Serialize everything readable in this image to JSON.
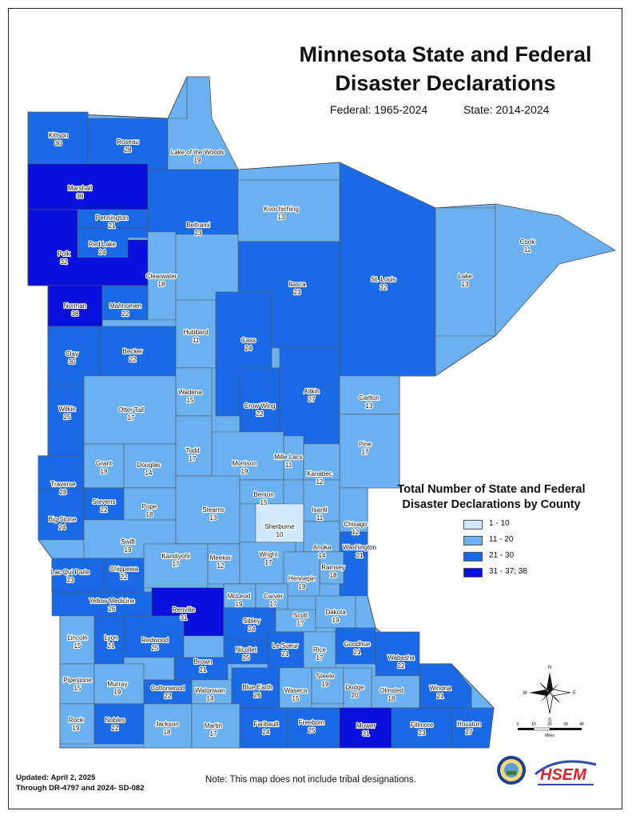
{
  "title_line1": "Minnesota State and Federal",
  "title_line2": "Disaster Declarations",
  "federal_label": "Federal:  1965-2024",
  "state_label": "State:  2014-2024",
  "legend": {
    "title_line1": "Total Number of State and Federal",
    "title_line2": "Disaster Declarations by County",
    "items": [
      {
        "label": "1 - 10",
        "color": "#d1e9fa"
      },
      {
        "label": "11 - 20",
        "color": "#6bb0ef"
      },
      {
        "label": "21 - 30",
        "color": "#1a6ae6"
      },
      {
        "label": "31 - 37; 38",
        "color": "#0a10dc"
      }
    ]
  },
  "counties": [
    {
      "name": "Kittson",
      "value": "30"
    },
    {
      "name": "Roseau",
      "value": "28"
    },
    {
      "name": "Lake of the Woods",
      "value": "19"
    },
    {
      "name": "Marshall",
      "value": "36"
    },
    {
      "name": "Pennington",
      "value": "21"
    },
    {
      "name": "Red Lake",
      "value": "24"
    },
    {
      "name": "Polk",
      "value": "32"
    },
    {
      "name": "Beltrami",
      "value": "23"
    },
    {
      "name": "Koochiching",
      "value": "13"
    },
    {
      "name": "Clearwater",
      "value": "18"
    },
    {
      "name": "Itasca",
      "value": "23"
    },
    {
      "name": "St. Louis",
      "value": "22"
    },
    {
      "name": "Lake",
      "value": "13"
    },
    {
      "name": "Cook",
      "value": "11"
    },
    {
      "name": "Norman",
      "value": "38"
    },
    {
      "name": "Mahnomen",
      "value": "22"
    },
    {
      "name": "Hubbard",
      "value": "11"
    },
    {
      "name": "Cass",
      "value": "24"
    },
    {
      "name": "Clay",
      "value": "30"
    },
    {
      "name": "Becker",
      "value": "22"
    },
    {
      "name": "Wadena",
      "value": "15"
    },
    {
      "name": "Crow Wing",
      "value": "22"
    },
    {
      "name": "Aitkin",
      "value": "27"
    },
    {
      "name": "Carlton",
      "value": "13"
    },
    {
      "name": "Wilkin",
      "value": "25"
    },
    {
      "name": "Otter Tail",
      "value": "17"
    },
    {
      "name": "Todd",
      "value": "17"
    },
    {
      "name": "Pine",
      "value": "17"
    },
    {
      "name": "Grant",
      "value": "19"
    },
    {
      "name": "Douglas",
      "value": "14"
    },
    {
      "name": "Morrison",
      "value": "19"
    },
    {
      "name": "Mille Lacs",
      "value": "11"
    },
    {
      "name": "Kanabec",
      "value": "12"
    },
    {
      "name": "Traverse",
      "value": "28"
    },
    {
      "name": "Stevens",
      "value": "22"
    },
    {
      "name": "Pope",
      "value": "18"
    },
    {
      "name": "Benton",
      "value": "15"
    },
    {
      "name": "Isanti",
      "value": "11"
    },
    {
      "name": "Stearns",
      "value": "13"
    },
    {
      "name": "Big Stone",
      "value": "24"
    },
    {
      "name": "Sherburne",
      "value": "10"
    },
    {
      "name": "Chisago",
      "value": "12"
    },
    {
      "name": "Swift",
      "value": "19"
    },
    {
      "name": "Anoka",
      "value": "14"
    },
    {
      "name": "Washington",
      "value": "21"
    },
    {
      "name": "Kandiyohi",
      "value": "17"
    },
    {
      "name": "Meeker",
      "value": "12"
    },
    {
      "name": "Wright",
      "value": "17"
    },
    {
      "name": "Ramsey",
      "value": "18"
    },
    {
      "name": "Lac Qui Parle",
      "value": "23"
    },
    {
      "name": "Chippewa",
      "value": "22"
    },
    {
      "name": "Hennepin",
      "value": "19"
    },
    {
      "name": "McLeod",
      "value": "19"
    },
    {
      "name": "Carver",
      "value": "17"
    },
    {
      "name": "Yellow Medicine",
      "value": "26"
    },
    {
      "name": "Renville",
      "value": "31"
    },
    {
      "name": "Sibley",
      "value": "24"
    },
    {
      "name": "Scott",
      "value": "17"
    },
    {
      "name": "Dakota",
      "value": "19"
    },
    {
      "name": "Lincoln",
      "value": "15"
    },
    {
      "name": "Lyon",
      "value": "21"
    },
    {
      "name": "Redwood",
      "value": "25"
    },
    {
      "name": "Nicollet",
      "value": "25"
    },
    {
      "name": "Le Sueur",
      "value": "21"
    },
    {
      "name": "Rice",
      "value": "17"
    },
    {
      "name": "Goodhue",
      "value": "21"
    },
    {
      "name": "Wabasha",
      "value": "22"
    },
    {
      "name": "Brown",
      "value": "21"
    },
    {
      "name": "Steele",
      "value": "19"
    },
    {
      "name": "Pipestone",
      "value": "15"
    },
    {
      "name": "Murray",
      "value": "19"
    },
    {
      "name": "Cottonwood",
      "value": "22"
    },
    {
      "name": "Watonwan",
      "value": "14"
    },
    {
      "name": "Blue Earth",
      "value": "26"
    },
    {
      "name": "Waseca",
      "value": "15"
    },
    {
      "name": "Dodge",
      "value": "20"
    },
    {
      "name": "Olmsted",
      "value": "18"
    },
    {
      "name": "Winona",
      "value": "21"
    },
    {
      "name": "Rock",
      "value": "19"
    },
    {
      "name": "Nobles",
      "value": "22"
    },
    {
      "name": "Jackson",
      "value": "18"
    },
    {
      "name": "Martin",
      "value": "17"
    },
    {
      "name": "Faribault",
      "value": "24"
    },
    {
      "name": "Freeborn",
      "value": "25"
    },
    {
      "name": "Mower",
      "value": "31"
    },
    {
      "name": "Fillmore",
      "value": "23"
    },
    {
      "name": "Houston",
      "value": "27"
    }
  ],
  "compass": {
    "n": "N",
    "s": "S",
    "e": "E",
    "w": "W"
  },
  "scale": {
    "ticks": [
      "0",
      "10",
      "20",
      "30",
      "40"
    ],
    "unit": "Miles"
  },
  "updated": "Updated: April 2, 2025",
  "through": "Through DR-4797 and 2024- SD-082",
  "note": "Note:  This map does not include tribal designations.",
  "logo_text": "HSEM"
}
